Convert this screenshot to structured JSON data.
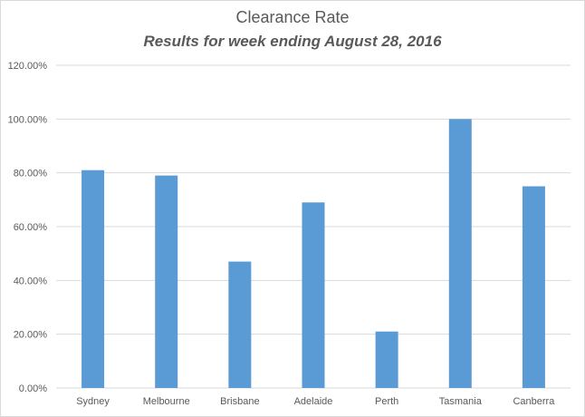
{
  "chart_data": {
    "type": "bar",
    "title": "Clearance Rate",
    "subtitle": "Results for week ending August 28, 2016",
    "categories": [
      "Sydney",
      "Melbourne",
      "Brisbane",
      "Adelaide",
      "Perth",
      "Tasmania",
      "Canberra"
    ],
    "values": [
      81,
      79,
      47,
      69,
      21,
      100,
      75
    ],
    "ylim": [
      0,
      120
    ],
    "yticks": [
      "0.00%",
      "20.00%",
      "40.00%",
      "60.00%",
      "80.00%",
      "100.00%",
      "120.00%"
    ],
    "grid": true,
    "legend": "none",
    "bar_color": "#5b9bd5"
  }
}
